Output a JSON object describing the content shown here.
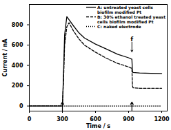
{
  "chart_data": {
    "type": "line",
    "x_label": "Time / s",
    "y_label": "Current / nA",
    "x": [
      0,
      300,
      310,
      320,
      340,
      360,
      400,
      450,
      500,
      600,
      700,
      800,
      900,
      930,
      935,
      940,
      1000,
      1100,
      1200
    ],
    "series": [
      {
        "name": "A: untreated yeast cells biofilm modified Pt",
        "color": "#000000",
        "line_style": "solid",
        "values": [
          0,
          0,
          300,
          700,
          880,
          850,
          790,
          720,
          670,
          610,
          560,
          510,
          475,
          460,
          340,
          330,
          325,
          322,
          320
        ]
      },
      {
        "name": "B: 30% ethanol treated yeast cells biofilm modified Pt",
        "color": "#000000",
        "line_style": "dashed",
        "values": [
          0,
          0,
          250,
          600,
          780,
          820,
          740,
          660,
          600,
          530,
          470,
          420,
          385,
          370,
          200,
          180,
          175,
          175,
          175
        ]
      },
      {
        "name": "C: naked electrode",
        "color": "#000000",
        "line_style": "dotted",
        "values": [
          0,
          0,
          0,
          0,
          0,
          0,
          0,
          0,
          0,
          0,
          0,
          0,
          0,
          0,
          0,
          0,
          0,
          0,
          0
        ]
      }
    ],
    "xlim": [
      0,
      1250
    ],
    "xticks": [
      0,
      300,
      600,
      900,
      1200
    ],
    "ylim": [
      -50,
      1000
    ],
    "yticks": [
      0,
      200,
      400,
      600,
      800
    ],
    "grid": false,
    "legend": "top-right",
    "annotations": [
      {
        "text": "f",
        "x": 930,
        "y": 660
      }
    ],
    "arrows_x": [
      300,
      930
    ]
  }
}
